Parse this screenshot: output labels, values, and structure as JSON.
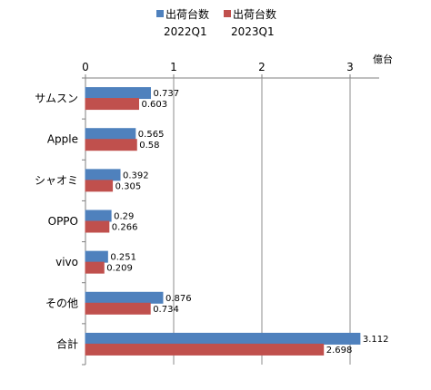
{
  "chart_data": {
    "type": "bar",
    "orientation": "horizontal",
    "categories": [
      "サムスン",
      "Apple",
      "シャオミ",
      "OPPO",
      "vivo",
      "その他",
      "合計"
    ],
    "series": [
      {
        "name": "出荷台数\n2022Q1",
        "name_line1": "出荷台数",
        "name_line2": "2022Q1",
        "color": "#4f81bd",
        "values": [
          0.737,
          0.565,
          0.392,
          0.29,
          0.251,
          0.876,
          3.112
        ]
      },
      {
        "name": "出荷台数\n2023Q1",
        "name_line1": "出荷台数",
        "name_line2": "2023Q1",
        "color": "#c0504d",
        "values": [
          0.603,
          0.58,
          0.305,
          0.266,
          0.209,
          0.734,
          2.698
        ]
      }
    ],
    "xaxis": {
      "ticks": [
        0,
        1,
        2,
        3
      ],
      "unit": "億台",
      "range": [
        0,
        3.25
      ],
      "position": "top"
    },
    "grid": true,
    "legend": "top"
  }
}
